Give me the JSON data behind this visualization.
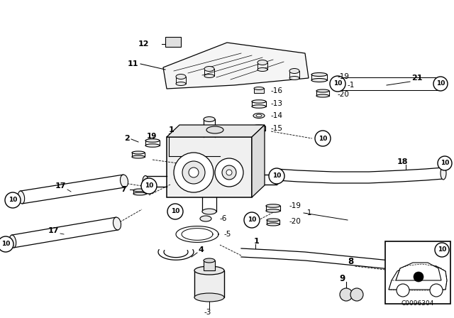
{
  "background_color": "#ffffff",
  "diagram_code": "C0096304"
}
